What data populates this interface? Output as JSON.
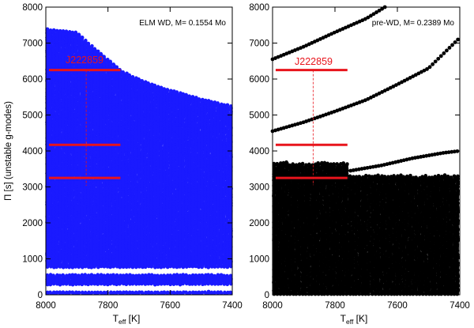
{
  "ylabel": "Π [s] (unstable g-modes)",
  "xlabel_main": "T",
  "xlabel_sub": "eff",
  "xlabel_unit": " [K]",
  "colors": {
    "elm": "#1a1aff",
    "prewd": "#000000",
    "obs": "#e8141c",
    "text": "#000000"
  },
  "chart_data": [
    {
      "type": "scatter",
      "title": "ELM WD, M= 0.1554 Mo",
      "xlim": [
        8000,
        7400
      ],
      "ylim": [
        0,
        8000
      ],
      "xticks": [
        8000,
        7800,
        7600,
        7400
      ],
      "yticks": [
        0,
        1000,
        2000,
        3000,
        4000,
        5000,
        6000,
        7000,
        8000
      ],
      "annotation": "J222859",
      "observed_periods": [
        6250,
        4170,
        3250
      ],
      "observed_teff_range": [
        7990,
        7760
      ],
      "observed_teff_center": 7870,
      "max_unstable_period_vs_teff": [
        [
          8000,
          7400
        ],
        [
          7900,
          7300
        ],
        [
          7800,
          6550
        ],
        [
          7750,
          6200
        ],
        [
          7700,
          6000
        ],
        [
          7600,
          5700
        ],
        [
          7500,
          5450
        ],
        [
          7400,
          5250
        ]
      ],
      "gap_periods": [
        [
          560,
          760
        ],
        [
          90,
          280
        ]
      ],
      "series": [
        {
          "name": "unstable g-modes",
          "color": "#1a1aff"
        }
      ]
    },
    {
      "type": "scatter",
      "title": "pre-WD, M= 0.2389 Mo",
      "xlim": [
        8000,
        7400
      ],
      "ylim": [
        0,
        8000
      ],
      "xticks": [
        8000,
        7800,
        7600,
        7400
      ],
      "yticks": [
        0,
        1000,
        2000,
        3000,
        4000,
        5000,
        6000,
        7000,
        8000
      ],
      "annotation": "J222859",
      "observed_periods": [
        6250,
        4170,
        3250
      ],
      "observed_teff_range": [
        7990,
        7760
      ],
      "observed_teff_center": 7870,
      "dense_region_top": 3700,
      "isolated_tracks": [
        [
          [
            8000,
            6550
          ],
          [
            7900,
            6900
          ],
          [
            7800,
            7300
          ],
          [
            7700,
            7680
          ],
          [
            7640,
            8000
          ]
        ],
        [
          [
            8000,
            4550
          ],
          [
            7900,
            4800
          ],
          [
            7800,
            5100
          ],
          [
            7700,
            5420
          ],
          [
            7600,
            5850
          ],
          [
            7500,
            6300
          ],
          [
            7400,
            7150
          ]
        ],
        [
          [
            7750,
            3450
          ],
          [
            7650,
            3600
          ],
          [
            7550,
            3800
          ],
          [
            7450,
            3950
          ],
          [
            7400,
            4000
          ]
        ]
      ],
      "series": [
        {
          "name": "unstable g-modes",
          "color": "#000000"
        }
      ]
    }
  ]
}
